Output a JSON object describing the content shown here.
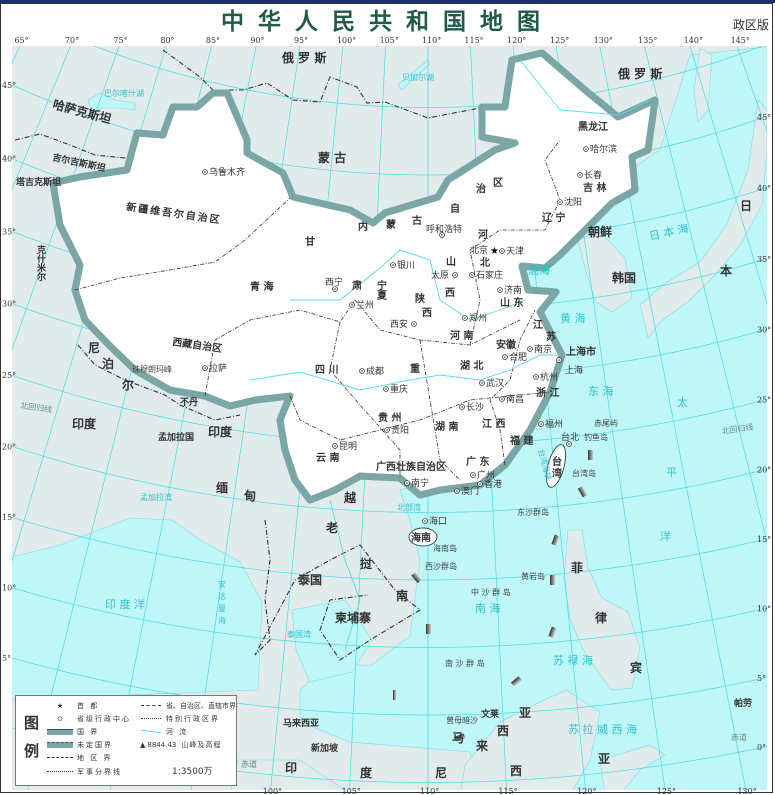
{
  "title": "中华人民共和国地图",
  "edition": "政区版",
  "colors": {
    "sea": "#bff6f8",
    "land": "#e1ebeb",
    "china": "#ffffff",
    "border_glow": "#7aa6a6",
    "border": "#2f5b5b",
    "grid": "#44dde6",
    "sea_text": "#2cc4d0"
  },
  "longitude_ticks_top": [
    65,
    70,
    75,
    80,
    85,
    90,
    95,
    100,
    105,
    110,
    115,
    120,
    125,
    130,
    135,
    140,
    145
  ],
  "longitude_ticks_bottom": [
    100,
    105,
    110,
    115,
    120,
    125,
    130
  ],
  "latitude_ticks_left": [
    45,
    40,
    35,
    30,
    25,
    20,
    15,
    10,
    5
  ],
  "latitude_ticks_right": [
    45,
    40,
    35,
    30,
    25,
    20,
    15,
    10,
    5,
    0
  ],
  "countries": [
    "俄  罗  斯",
    "俄  罗  斯",
    "蒙       古",
    "哈萨克斯坦",
    "吉尔吉斯斯坦",
    "塔吉克斯坦",
    "克什米尔",
    "尼",
    "泊",
    "尔",
    "不丹",
    "印度",
    "印度",
    "孟加拉国",
    "缅",
    "甸",
    "越",
    "南",
    "老",
    "挝",
    "泰国",
    "柬埔寨",
    "马来西亚",
    "新加坡",
    "印",
    "度",
    "尼",
    "西",
    "亚",
    "马",
    "来",
    "西",
    "亚",
    "文莱",
    "菲",
    "律",
    "宾",
    "朝鲜",
    "韩国",
    "日",
    "本",
    "帕劳"
  ],
  "seas": [
    "巴尔喀什湖",
    "贝加尔湖",
    "日 本 海",
    "渤海",
    "黄 海",
    "东 海",
    "太",
    "平",
    "洋",
    "台湾海峡",
    "北部湾",
    "南 海",
    "泰国湾",
    "孟加拉湾",
    "印 度 洋",
    "安达曼海",
    "苏 禄 海",
    "苏 拉 威 西 海"
  ],
  "reference_lines": [
    "北回归线",
    "北回归线",
    "赤道",
    "赤道"
  ],
  "provinces": [
    "新疆维吾尔自治区",
    "西藏自治区",
    "青 海",
    "甘",
    "肃",
    "内",
    "蒙",
    "古",
    "自",
    "治",
    "区",
    "黑龙江",
    "吉 林",
    "辽 宁",
    "河",
    "北",
    "山",
    "西",
    "山 东",
    "宁夏",
    "陕",
    "西",
    "河 南",
    "江",
    "苏",
    "安徽",
    "上海市",
    "浙 江",
    "湖 北",
    "重",
    "四 川",
    "贵 州",
    "湖 南",
    "江 西",
    "福 建",
    "云 南",
    "广西壮族自治区",
    "广 东",
    "台",
    "湾",
    "海南"
  ],
  "capital": "北京",
  "cities": [
    "乌鲁木齐",
    "拉萨",
    "西宁",
    "兰州",
    "银川",
    "呼和浩特",
    "天津",
    "石家庄",
    "太原",
    "济南",
    "郑州",
    "西安",
    "合肥",
    "南京",
    "上海",
    "杭州",
    "武汉",
    "成都",
    "重庆",
    "长沙",
    "南昌",
    "福州",
    "贵阳",
    "昆明",
    "南宁",
    "广州",
    "台北",
    "哈尔滨",
    "长春",
    "沈阳",
    "海口",
    "香港",
    "澳门"
  ],
  "islands": [
    "赤尾屿",
    "钓鱼岛",
    "台湾岛",
    "东沙群岛",
    "海南岛",
    "西沙群岛",
    "黄岩岛",
    "中 沙 群 岛",
    "南 沙 群 岛",
    "曾母暗沙",
    "珠穆朗玛峰"
  ],
  "legend": {
    "title_1": "图",
    "title_2": "例",
    "items": [
      "首    都",
      "省级行政中心",
      "国    界",
      "未定国界",
      "地 区 界",
      "军事分界线",
      "省、自治区、直辖市界",
      "特别行政区界",
      "河    流",
      "山峰及高程"
    ],
    "peak_value": "8844.43",
    "scale": "1:3500万"
  }
}
